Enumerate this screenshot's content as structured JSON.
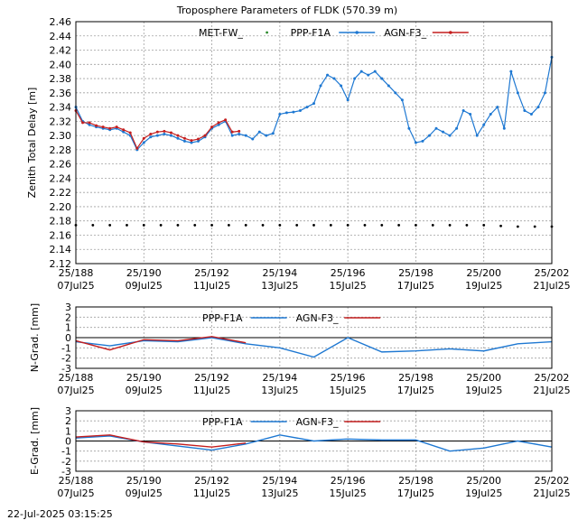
{
  "timestamp": "22-Jul-2025 03:15:25",
  "colors": {
    "met": "#2e8b2e",
    "ppp": "#1e78d2",
    "agn": "#c41e1e",
    "zero": "#000000"
  },
  "chart_data": [
    {
      "type": "scatter",
      "title": "Troposphere Parameters of FLDK (570.39 m)",
      "ylabel": "Zenith Total Delay [m]",
      "xlim": [
        188,
        202
      ],
      "ylim": [
        2.12,
        2.46
      ],
      "grid": true,
      "legend": "top-center",
      "x_ticks": [
        {
          "x": 188,
          "doy": "25/188",
          "date": "07Jul25"
        },
        {
          "x": 190,
          "doy": "25/190",
          "date": "09Jul25"
        },
        {
          "x": 192,
          "doy": "25/192",
          "date": "11Jul25"
        },
        {
          "x": 194,
          "doy": "25/194",
          "date": "13Jul25"
        },
        {
          "x": 196,
          "doy": "25/196",
          "date": "15Jul25"
        },
        {
          "x": 198,
          "doy": "25/198",
          "date": "17Jul25"
        },
        {
          "x": 200,
          "doy": "25/200",
          "date": "19Jul25"
        },
        {
          "x": 202,
          "doy": "25/202",
          "date": "21Jul25"
        }
      ],
      "y_ticks": [
        "2.12",
        "2.14",
        "2.16",
        "2.18",
        "2.20",
        "2.22",
        "2.24",
        "2.26",
        "2.28",
        "2.30",
        "2.32",
        "2.34",
        "2.36",
        "2.38",
        "2.40",
        "2.42",
        "2.44",
        "2.46"
      ],
      "series": [
        {
          "name": "MET-FW_",
          "style": "points",
          "x": [
            188,
            188.5,
            189,
            189.5,
            190,
            190.5,
            191,
            191.5,
            192,
            192.5,
            193,
            193.5,
            194,
            194.5,
            195,
            195.5,
            196,
            196.5,
            197,
            197.5,
            198,
            198.5,
            199,
            199.5,
            200,
            200.5,
            201,
            201.5,
            202
          ],
          "y": [
            2.174,
            2.174,
            2.174,
            2.174,
            2.174,
            2.174,
            2.174,
            2.174,
            2.174,
            2.174,
            2.174,
            2.174,
            2.174,
            2.174,
            2.174,
            2.174,
            2.174,
            2.174,
            2.174,
            2.174,
            2.174,
            2.174,
            2.174,
            2.174,
            2.174,
            2.173,
            2.172,
            2.172,
            2.172
          ]
        },
        {
          "name": "PPP-F1A",
          "style": "line+points",
          "x": [
            188,
            188.2,
            188.4,
            188.6,
            188.8,
            189,
            189.2,
            189.4,
            189.6,
            189.8,
            190,
            190.2,
            190.4,
            190.6,
            190.8,
            191,
            191.2,
            191.4,
            191.6,
            191.8,
            192,
            192.2,
            192.4,
            192.6,
            192.8,
            193,
            193.2,
            193.4,
            193.6,
            193.8,
            194,
            194.2,
            194.4,
            194.6,
            194.8,
            195,
            195.2,
            195.4,
            195.6,
            195.8,
            196,
            196.2,
            196.4,
            196.6,
            196.8,
            197,
            197.2,
            197.4,
            197.6,
            197.8,
            198,
            198.2,
            198.4,
            198.6,
            198.8,
            199,
            199.2,
            199.4,
            199.6,
            199.8,
            200,
            200.2,
            200.4,
            200.6,
            200.8,
            201,
            201.2,
            201.4,
            201.6,
            201.8,
            202
          ],
          "y": [
            2.34,
            2.32,
            2.315,
            2.312,
            2.31,
            2.308,
            2.31,
            2.305,
            2.3,
            2.28,
            2.29,
            2.298,
            2.3,
            2.302,
            2.3,
            2.296,
            2.292,
            2.29,
            2.292,
            2.298,
            2.31,
            2.315,
            2.32,
            2.3,
            2.302,
            2.3,
            2.295,
            2.305,
            2.3,
            2.303,
            2.33,
            2.332,
            2.333,
            2.335,
            2.34,
            2.345,
            2.37,
            2.385,
            2.38,
            2.37,
            2.35,
            2.38,
            2.39,
            2.385,
            2.39,
            2.38,
            2.37,
            2.36,
            2.35,
            2.31,
            2.29,
            2.292,
            2.3,
            2.31,
            2.305,
            2.3,
            2.31,
            2.335,
            2.33,
            2.3,
            2.315,
            2.33,
            2.34,
            2.31,
            2.39,
            2.36,
            2.335,
            2.33,
            2.34,
            2.36,
            2.41
          ]
        },
        {
          "name": "AGN-F3_",
          "style": "line+points",
          "x": [
            188,
            188.2,
            188.4,
            188.6,
            188.8,
            189,
            189.2,
            189.4,
            189.6,
            189.8,
            190,
            190.2,
            190.4,
            190.6,
            190.8,
            191,
            191.2,
            191.4,
            191.6,
            191.8,
            192,
            192.2,
            192.4,
            192.6,
            192.8
          ],
          "y": [
            2.335,
            2.318,
            2.318,
            2.314,
            2.312,
            2.31,
            2.312,
            2.308,
            2.304,
            2.282,
            2.296,
            2.302,
            2.305,
            2.306,
            2.304,
            2.3,
            2.296,
            2.293,
            2.295,
            2.3,
            2.312,
            2.318,
            2.322,
            2.305,
            2.306
          ]
        }
      ]
    },
    {
      "type": "line",
      "ylabel": "N-Grad. [mm]",
      "xlim": [
        188,
        202
      ],
      "ylim": [
        -3,
        3
      ],
      "grid": true,
      "legend": "top-center",
      "x_ticks": [
        {
          "x": 188,
          "doy": "25/188",
          "date": "07Jul25"
        },
        {
          "x": 190,
          "doy": "25/190",
          "date": "09Jul25"
        },
        {
          "x": 192,
          "doy": "25/192",
          "date": "11Jul25"
        },
        {
          "x": 194,
          "doy": "25/194",
          "date": "13Jul25"
        },
        {
          "x": 196,
          "doy": "25/196",
          "date": "15Jul25"
        },
        {
          "x": 198,
          "doy": "25/198",
          "date": "17Jul25"
        },
        {
          "x": 200,
          "doy": "25/200",
          "date": "19Jul25"
        },
        {
          "x": 202,
          "doy": "25/202",
          "date": "21Jul25"
        }
      ],
      "y_ticks": [
        "3",
        "2",
        "1",
        "0",
        "-1",
        "-2",
        "-3"
      ],
      "series": [
        {
          "name": "PPP-F1A",
          "x": [
            188,
            189,
            190,
            191,
            192,
            193,
            194,
            195,
            196,
            197,
            198,
            199,
            200,
            201,
            202
          ],
          "y": [
            -0.4,
            -0.8,
            -0.3,
            -0.4,
            0,
            -0.6,
            -1.0,
            -1.9,
            0,
            -1.4,
            -1.3,
            -1.1,
            -1.3,
            -0.6,
            -0.4
          ]
        },
        {
          "name": "AGN-F3_",
          "x": [
            188,
            189,
            190,
            191,
            192,
            193
          ],
          "y": [
            -0.3,
            -1.2,
            -0.2,
            -0.3,
            0.1,
            -0.5
          ]
        }
      ]
    },
    {
      "type": "line",
      "ylabel": "E-Grad. [mm]",
      "xlim": [
        188,
        202
      ],
      "ylim": [
        -3,
        3
      ],
      "grid": true,
      "legend": "top-center",
      "x_ticks": [
        {
          "x": 188,
          "doy": "25/188",
          "date": "07Jul25"
        },
        {
          "x": 190,
          "doy": "25/190",
          "date": "09Jul25"
        },
        {
          "x": 192,
          "doy": "25/192",
          "date": "11Jul25"
        },
        {
          "x": 194,
          "doy": "25/194",
          "date": "13Jul25"
        },
        {
          "x": 196,
          "doy": "25/196",
          "date": "15Jul25"
        },
        {
          "x": 198,
          "doy": "25/198",
          "date": "17Jul25"
        },
        {
          "x": 200,
          "doy": "25/200",
          "date": "19Jul25"
        },
        {
          "x": 202,
          "doy": "25/202",
          "date": "21Jul25"
        }
      ],
      "y_ticks": [
        "3",
        "2",
        "1",
        "0",
        "-1",
        "-2",
        "-3"
      ],
      "series": [
        {
          "name": "PPP-F1A",
          "x": [
            188,
            189,
            190,
            191,
            192,
            193,
            194,
            195,
            196,
            197,
            198,
            199,
            200,
            201,
            202
          ],
          "y": [
            0.3,
            0.5,
            -0.1,
            -0.5,
            -0.9,
            -0.3,
            0.6,
            0,
            0.2,
            0.1,
            0.1,
            -1.0,
            -0.7,
            0,
            -0.6
          ]
        },
        {
          "name": "AGN-F3_",
          "x": [
            188,
            189,
            190,
            191,
            192,
            193
          ],
          "y": [
            0.4,
            0.6,
            -0.1,
            -0.3,
            -0.6,
            -0.2
          ]
        }
      ]
    }
  ]
}
